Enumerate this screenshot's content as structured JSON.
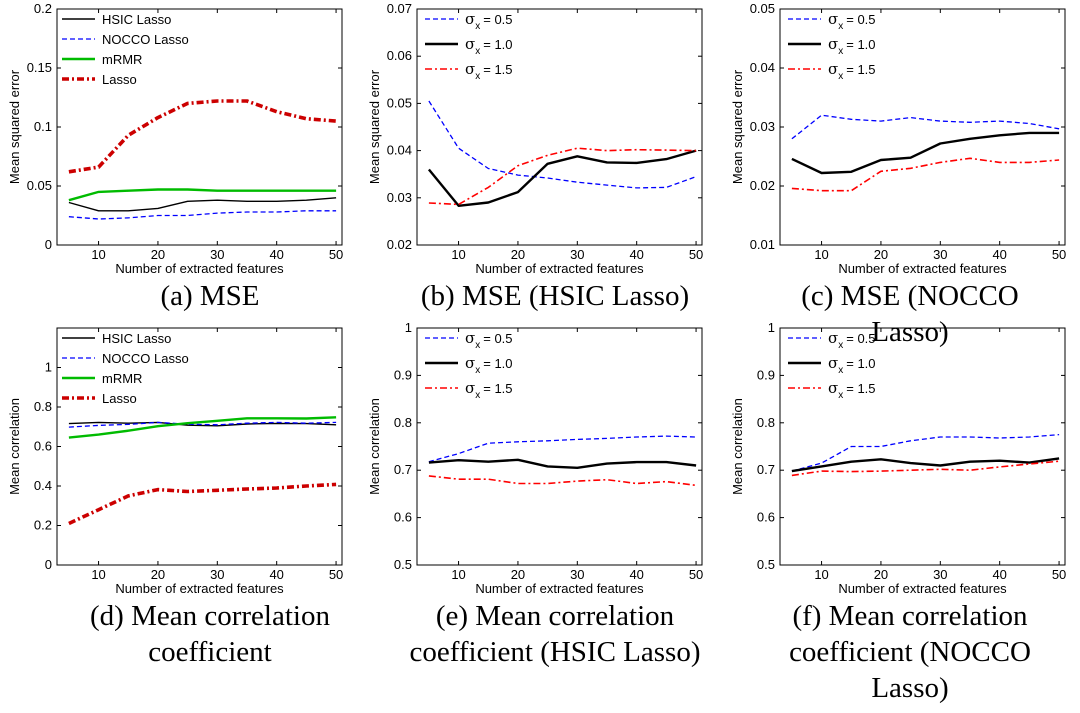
{
  "captions": [
    "(a) MSE",
    "(b) MSE (HSIC Lasso)",
    "(c) MSE (NOCCO Lasso)",
    "(d) Mean correlation coefficient",
    "(e) Mean correlation coefficient (HSIC Lasso)",
    "(f) Mean correlation coefficient (NOCCO Lasso)"
  ],
  "chart_data": [
    {
      "type": "line",
      "xlabel": "Number of extracted features",
      "ylabel": "Mean squared error",
      "xlim": [
        3,
        51
      ],
      "ylim": [
        0,
        0.2
      ],
      "xticks": [
        10,
        20,
        30,
        40,
        50
      ],
      "yticks": [
        0,
        0.05,
        0.1,
        0.15,
        0.2
      ],
      "ytick_labels": [
        "0",
        "0.05",
        "0.1",
        "0.15",
        "0.2"
      ],
      "legend": "top-left",
      "x": [
        5,
        10,
        15,
        20,
        25,
        30,
        35,
        40,
        45,
        50
      ],
      "series": [
        {
          "name": "HSIC Lasso",
          "color": "#000000",
          "style": "solid",
          "values": [
            0.036,
            0.029,
            0.029,
            0.031,
            0.037,
            0.038,
            0.037,
            0.037,
            0.038,
            0.04
          ]
        },
        {
          "name": "NOCCO Lasso",
          "color": "#0000ff",
          "style": "dashed",
          "values": [
            0.024,
            0.022,
            0.023,
            0.025,
            0.025,
            0.027,
            0.028,
            0.028,
            0.029,
            0.029
          ]
        },
        {
          "name": "mRMR",
          "color": "#00bb00",
          "style": "solid-thick",
          "values": [
            0.038,
            0.045,
            0.046,
            0.047,
            0.047,
            0.046,
            0.046,
            0.046,
            0.046,
            0.046
          ]
        },
        {
          "name": "Lasso",
          "color": "#cc0000",
          "style": "dashdot-thick",
          "values": [
            0.062,
            0.066,
            0.093,
            0.108,
            0.12,
            0.122,
            0.122,
            0.113,
            0.107,
            0.105
          ]
        }
      ]
    },
    {
      "type": "line",
      "xlabel": "Number of extracted features",
      "ylabel": "Mean squared error",
      "xlim": [
        3,
        51
      ],
      "ylim": [
        0.02,
        0.07
      ],
      "xticks": [
        10,
        20,
        30,
        40,
        50
      ],
      "yticks": [
        0.02,
        0.03,
        0.04,
        0.05,
        0.06,
        0.07
      ],
      "ytick_labels": [
        "0.02",
        "0.03",
        "0.04",
        "0.05",
        "0.06",
        "0.07"
      ],
      "legend": "top-left",
      "x": [
        5,
        10,
        15,
        20,
        25,
        30,
        35,
        40,
        45,
        50
      ],
      "series": [
        {
          "name": "= 0.5",
          "color": "#0000ff",
          "style": "dashed",
          "values": [
            0.0505,
            0.0405,
            0.0362,
            0.0348,
            0.0342,
            0.0333,
            0.0327,
            0.0321,
            0.0322,
            0.0345
          ]
        },
        {
          "name": "= 1.0",
          "color": "#000000",
          "style": "solid-thick",
          "values": [
            0.036,
            0.0283,
            0.029,
            0.0312,
            0.0372,
            0.0388,
            0.0375,
            0.0374,
            0.0382,
            0.04
          ]
        },
        {
          "name": "= 1.5",
          "color": "#ff0000",
          "style": "dashdot",
          "values": [
            0.0289,
            0.0286,
            0.0322,
            0.0368,
            0.039,
            0.0405,
            0.04,
            0.0402,
            0.0401,
            0.04
          ]
        }
      ]
    },
    {
      "type": "line",
      "xlabel": "Number of extracted features",
      "ylabel": "Mean squared error",
      "xlim": [
        3,
        51
      ],
      "ylim": [
        0.01,
        0.05
      ],
      "xticks": [
        10,
        20,
        30,
        40,
        50
      ],
      "yticks": [
        0.01,
        0.02,
        0.03,
        0.04,
        0.05
      ],
      "ytick_labels": [
        "0.01",
        "0.02",
        "0.03",
        "0.04",
        "0.05"
      ],
      "legend": "top-left",
      "x": [
        5,
        10,
        15,
        20,
        25,
        30,
        35,
        40,
        45,
        50
      ],
      "series": [
        {
          "name": "= 0.5",
          "color": "#0000ff",
          "style": "dashed",
          "values": [
            0.028,
            0.032,
            0.0313,
            0.031,
            0.0316,
            0.031,
            0.0308,
            0.031,
            0.0306,
            0.0297
          ]
        },
        {
          "name": "= 1.0",
          "color": "#000000",
          "style": "solid-thick",
          "values": [
            0.0246,
            0.0222,
            0.0224,
            0.0244,
            0.0248,
            0.0272,
            0.028,
            0.0286,
            0.029,
            0.029
          ]
        },
        {
          "name": "= 1.5",
          "color": "#ff0000",
          "style": "dashdot",
          "values": [
            0.0196,
            0.0192,
            0.0192,
            0.0225,
            0.023,
            0.024,
            0.0247,
            0.024,
            0.024,
            0.0244
          ]
        }
      ]
    },
    {
      "type": "line",
      "xlabel": "Number of extracted features",
      "ylabel": "Mean correlation",
      "xlim": [
        3,
        51
      ],
      "ylim": [
        0,
        1.2
      ],
      "xticks": [
        10,
        20,
        30,
        40,
        50
      ],
      "yticks": [
        0,
        0.2,
        0.4,
        0.6,
        0.8,
        1
      ],
      "ytick_labels": [
        "0",
        "0.2",
        "0.4",
        "0.6",
        "0.8",
        "1"
      ],
      "legend": "top-left",
      "x": [
        5,
        10,
        15,
        20,
        25,
        30,
        35,
        40,
        45,
        50
      ],
      "series": [
        {
          "name": "HSIC Lasso",
          "color": "#000000",
          "style": "solid",
          "values": [
            0.716,
            0.722,
            0.718,
            0.722,
            0.708,
            0.705,
            0.714,
            0.717,
            0.716,
            0.71
          ]
        },
        {
          "name": "NOCCO Lasso",
          "color": "#0000ff",
          "style": "dashed",
          "values": [
            0.698,
            0.707,
            0.712,
            0.722,
            0.713,
            0.71,
            0.718,
            0.722,
            0.718,
            0.722
          ]
        },
        {
          "name": "mRMR",
          "color": "#00bb00",
          "style": "solid-thick",
          "values": [
            0.645,
            0.66,
            0.68,
            0.703,
            0.718,
            0.73,
            0.743,
            0.743,
            0.742,
            0.748
          ]
        },
        {
          "name": "Lasso",
          "color": "#cc0000",
          "style": "dashdot-thick",
          "values": [
            0.21,
            0.28,
            0.35,
            0.382,
            0.372,
            0.378,
            0.385,
            0.39,
            0.4,
            0.408
          ]
        }
      ]
    },
    {
      "type": "line",
      "xlabel": "Number of extracted features",
      "ylabel": "Mean correlation",
      "xlim": [
        3,
        51
      ],
      "ylim": [
        0.5,
        1
      ],
      "xticks": [
        10,
        20,
        30,
        40,
        50
      ],
      "yticks": [
        0.5,
        0.6,
        0.7,
        0.8,
        0.9,
        1
      ],
      "ytick_labels": [
        "0.5",
        "0.6",
        "0.7",
        "0.8",
        "0.9",
        "1"
      ],
      "legend": "top-left",
      "x": [
        5,
        10,
        15,
        20,
        25,
        30,
        35,
        40,
        45,
        50
      ],
      "series": [
        {
          "name": "= 0.5",
          "color": "#0000ff",
          "style": "dashed",
          "values": [
            0.718,
            0.735,
            0.757,
            0.76,
            0.762,
            0.765,
            0.767,
            0.77,
            0.772,
            0.77
          ]
        },
        {
          "name": "= 1.0",
          "color": "#000000",
          "style": "solid-thick",
          "values": [
            0.716,
            0.721,
            0.718,
            0.722,
            0.708,
            0.705,
            0.714,
            0.717,
            0.717,
            0.71
          ]
        },
        {
          "name": "= 1.5",
          "color": "#ff0000",
          "style": "dashdot",
          "values": [
            0.688,
            0.681,
            0.681,
            0.672,
            0.672,
            0.677,
            0.68,
            0.672,
            0.676,
            0.668
          ]
        }
      ]
    },
    {
      "type": "line",
      "xlabel": "Number of extracted features",
      "ylabel": "Mean correlation",
      "xlim": [
        3,
        51
      ],
      "ylim": [
        0.5,
        1
      ],
      "xticks": [
        10,
        20,
        30,
        40,
        50
      ],
      "yticks": [
        0.5,
        0.6,
        0.7,
        0.8,
        0.9,
        1
      ],
      "ytick_labels": [
        "0.5",
        "0.6",
        "0.7",
        "0.8",
        "0.9",
        "1"
      ],
      "legend": "top-left",
      "x": [
        5,
        10,
        15,
        20,
        25,
        30,
        35,
        40,
        45,
        50
      ],
      "series": [
        {
          "name": "= 0.5",
          "color": "#0000ff",
          "style": "dashed",
          "values": [
            0.698,
            0.715,
            0.75,
            0.75,
            0.762,
            0.77,
            0.77,
            0.768,
            0.77,
            0.775
          ]
        },
        {
          "name": "= 1.0",
          "color": "#000000",
          "style": "solid-thick",
          "values": [
            0.698,
            0.708,
            0.718,
            0.723,
            0.715,
            0.71,
            0.718,
            0.72,
            0.716,
            0.725
          ]
        },
        {
          "name": "= 1.5",
          "color": "#ff0000",
          "style": "dashdot",
          "values": [
            0.689,
            0.698,
            0.697,
            0.698,
            0.7,
            0.702,
            0.7,
            0.707,
            0.713,
            0.719
          ]
        }
      ]
    }
  ]
}
